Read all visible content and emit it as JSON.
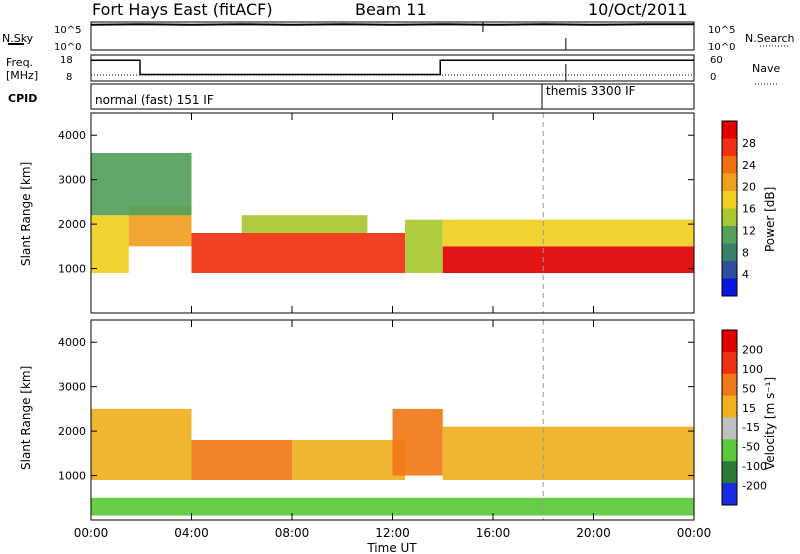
{
  "header": {
    "station": "Fort Hays East (fitACF)",
    "beam": "Beam 11",
    "date": "10/Oct/2011"
  },
  "noise_panel": {
    "left_label": "N.Sky",
    "right_label": "N.Search",
    "left_ticks": [
      "10^5",
      "10^0"
    ],
    "right_ticks": [
      "10^5",
      "10^0"
    ]
  },
  "freq_panel": {
    "left_label_1": "Freq.",
    "left_label_2": "[MHz]",
    "right_label": "Nave",
    "left_ticks": [
      "18",
      "8"
    ],
    "right_ticks": [
      "60",
      "0"
    ]
  },
  "cpid_panel": {
    "label": "CPID",
    "modes": [
      "normal (fast) 151 IF",
      "themis 3300 IF"
    ]
  },
  "power_panel": {
    "ylabel": "Slant Range [km]",
    "yticks": [
      "1000",
      "2000",
      "3000",
      "4000"
    ],
    "colorbar_label": "Power [dB]",
    "colorbar_ticks": [
      "4",
      "8",
      "12",
      "16",
      "20",
      "24",
      "28"
    ]
  },
  "velocity_panel": {
    "ylabel": "Slant Range [km]",
    "yticks": [
      "1000",
      "2000",
      "3000",
      "4000"
    ],
    "colorbar_label": "Velocity [m s⁻¹]",
    "colorbar_ticks": [
      "200",
      "100",
      "50",
      "15",
      "-15",
      "-50",
      "-100",
      "-200"
    ]
  },
  "xaxis": {
    "label": "Time UT",
    "ticks": [
      "00:00",
      "04:00",
      "08:00",
      "12:00",
      "16:00",
      "20:00",
      "00:00"
    ]
  },
  "colors": {
    "power_scale": [
      "#0a14e0",
      "#2e4fa0",
      "#3a7f6a",
      "#55a05a",
      "#a8c830",
      "#f0d020",
      "#f0a020",
      "#f07010",
      "#f03010",
      "#e00000"
    ],
    "velocity_scale": [
      "#1a2ae0",
      "#2c7a3a",
      "#5ac838",
      "#c0c0c0",
      "#f0b020",
      "#f07818",
      "#f03010",
      "#e00000"
    ]
  },
  "chart_data": [
    {
      "type": "line",
      "title": "N.Sky / N.Search",
      "x_range_hours": [
        0,
        24
      ],
      "ylim_log10": [
        0,
        5
      ],
      "series": [
        {
          "name": "N.Sky",
          "x": [
            0,
            2,
            4,
            6,
            8,
            10,
            12,
            14,
            16,
            18,
            20,
            22,
            24
          ],
          "y_log10": [
            4.5,
            4.6,
            4.5,
            4.6,
            4.5,
            4.6,
            4.5,
            4.6,
            4.5,
            4.6,
            4.5,
            4.6,
            4.6
          ]
        }
      ]
    },
    {
      "type": "line",
      "title": "Freq. [MHz] / Nave",
      "x": [
        0,
        1.95,
        1.95,
        13.9,
        13.9,
        24
      ],
      "freq_mhz": [
        16,
        16,
        10.5,
        10.5,
        16,
        16
      ],
      "ylim_freq": [
        8,
        18
      ],
      "nave_ylim": [
        0,
        60
      ]
    },
    {
      "type": "table",
      "title": "CPID",
      "modes": [
        {
          "name": "normal (fast) 151 IF",
          "start_hour": 0,
          "end_hour": 18
        },
        {
          "name": "themis 3300 IF",
          "start_hour": 18,
          "end_hour": 24
        }
      ]
    },
    {
      "type": "heatmap",
      "title": "Power [dB]",
      "x_range_hours": [
        0,
        24
      ],
      "ylim_km": [
        0,
        4500
      ],
      "colorbar_range": [
        0,
        30
      ],
      "bands": [
        {
          "t0": 0.0,
          "t1": 1.5,
          "r0": 900,
          "r1": 2200,
          "power": 16
        },
        {
          "t0": 1.5,
          "t1": 4.0,
          "r0": 1500,
          "r1": 2400,
          "power": 20
        },
        {
          "t0": 4.0,
          "t1": 12.5,
          "r0": 900,
          "r1": 1800,
          "power": 26
        },
        {
          "t0": 6.0,
          "t1": 11.0,
          "r0": 1800,
          "r1": 2200,
          "power": 12
        },
        {
          "t0": 12.5,
          "t1": 14.0,
          "r0": 900,
          "r1": 2100,
          "power": 14
        },
        {
          "t0": 14.0,
          "t1": 24.0,
          "r0": 900,
          "r1": 1500,
          "power": 28
        },
        {
          "t0": 14.0,
          "t1": 24.0,
          "r0": 1500,
          "r1": 2100,
          "power": 16
        },
        {
          "t0": 0.0,
          "t1": 4.0,
          "r0": 2200,
          "r1": 3600,
          "power": 10
        }
      ]
    },
    {
      "type": "heatmap",
      "title": "Velocity [m s⁻¹]",
      "x_range_hours": [
        0,
        24
      ],
      "ylim_km": [
        0,
        4500
      ],
      "colorbar_range": [
        -200,
        200
      ],
      "bands": [
        {
          "t0": 0.0,
          "t1": 4.0,
          "r0": 900,
          "r1": 2500,
          "velocity": 0
        },
        {
          "t0": 4.0,
          "t1": 8.0,
          "r0": 900,
          "r1": 1800,
          "velocity": 60
        },
        {
          "t0": 8.0,
          "t1": 12.5,
          "r0": 900,
          "r1": 1800,
          "velocity": 0
        },
        {
          "t0": 12.0,
          "t1": 14.0,
          "r0": 1000,
          "r1": 2500,
          "velocity": 60
        },
        {
          "t0": 14.0,
          "t1": 24.0,
          "r0": 900,
          "r1": 2100,
          "velocity": 0
        },
        {
          "t0": 0.0,
          "t1": 24.0,
          "r0": 100,
          "r1": 500,
          "velocity": -60
        }
      ]
    }
  ]
}
